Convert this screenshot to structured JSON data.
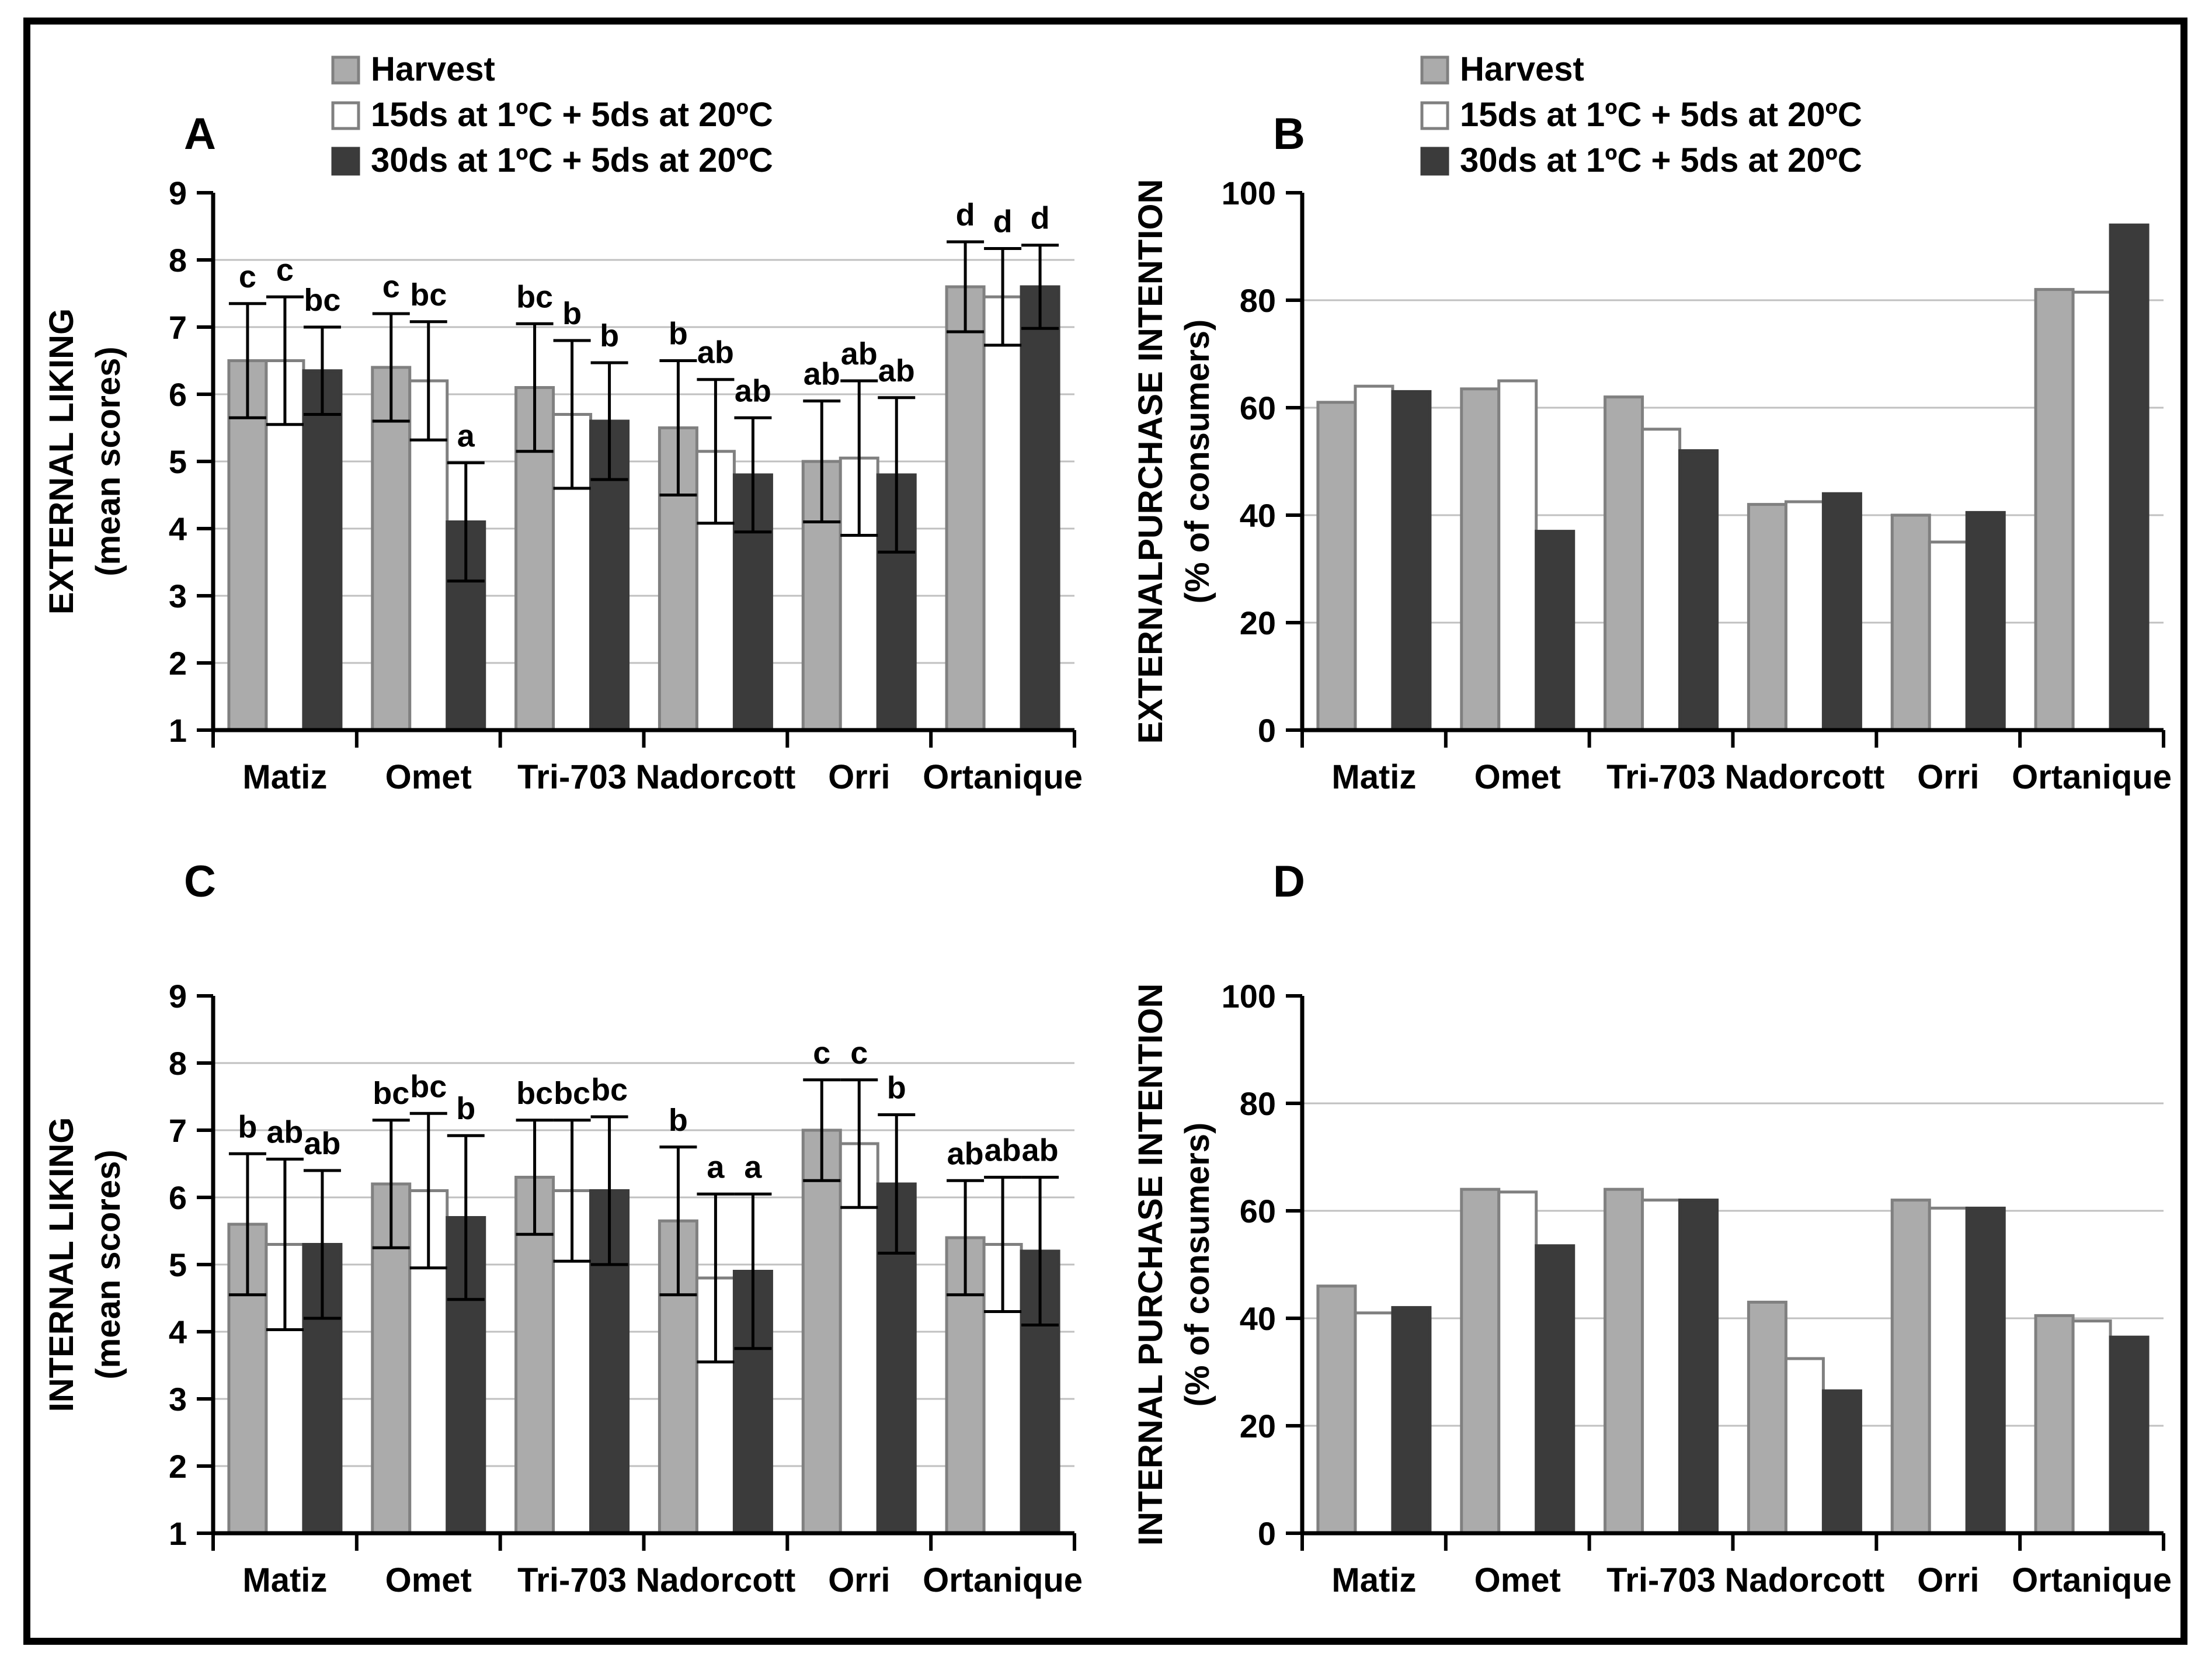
{
  "figure": {
    "background": "#FFFFFF",
    "frame_color": "#000000",
    "grid_color": "#C0C0C0",
    "axis_color": "#000000",
    "error_bar_color": "#000000",
    "text_color": "#000000"
  },
  "legend": {
    "items": [
      {
        "label": "Harvest",
        "fill": "#ABABAB",
        "border": "#808080"
      },
      {
        "label": "15ds at 1ºC + 5ds at 20ºC",
        "fill": "#FFFFFF",
        "border": "#808080"
      },
      {
        "label": "30ds at 1ºC + 5ds at 20ºC",
        "fill": "#3B3B3B",
        "border": "#3B3B3B"
      }
    ]
  },
  "chart_data": [
    {
      "type": "bar",
      "panel_letter": "A",
      "ylabel": [
        "EXTERNAL LIKING",
        "(mean scores)"
      ],
      "ylim": [
        1,
        9
      ],
      "yticks": [
        1,
        2,
        3,
        4,
        5,
        6,
        7,
        8,
        9
      ],
      "grid": true,
      "show_legend": true,
      "legend_position": "top",
      "categories": [
        "Matiz",
        "Omet",
        "Tri-703",
        "Nadorcott",
        "Orri",
        "Ortanique"
      ],
      "series": [
        {
          "name": "Harvest",
          "values": [
            6.5,
            6.4,
            6.1,
            5.5,
            5.0,
            7.6
          ],
          "errors": [
            0.85,
            0.8,
            0.95,
            1.0,
            0.9,
            0.67
          ],
          "letters": [
            "c",
            "c",
            "bc",
            "b",
            "ab",
            "d"
          ]
        },
        {
          "name": "15ds at 1ºC + 5ds at 20ºC",
          "values": [
            6.5,
            6.2,
            5.7,
            5.15,
            5.05,
            7.45
          ],
          "errors": [
            0.95,
            0.88,
            1.1,
            1.07,
            1.15,
            0.72
          ],
          "letters": [
            "c",
            "bc",
            "b",
            "ab",
            "ab",
            "d"
          ]
        },
        {
          "name": "30ds at 1ºC + 5ds at 20ºC",
          "values": [
            6.35,
            4.1,
            5.6,
            4.8,
            4.8,
            7.6
          ],
          "errors": [
            0.65,
            0.88,
            0.87,
            0.85,
            1.15,
            0.62
          ],
          "letters": [
            "bc",
            "a",
            "b",
            "ab",
            "ab",
            "d"
          ]
        }
      ]
    },
    {
      "type": "bar",
      "panel_letter": "B",
      "ylabel": [
        "EXTERNALPURCHASE INTENTION",
        "(% of consumers)"
      ],
      "ylim": [
        0,
        100
      ],
      "yticks": [
        0,
        20,
        40,
        60,
        80,
        100
      ],
      "grid": true,
      "show_legend": true,
      "legend_position": "top",
      "categories": [
        "Matiz",
        "Omet",
        "Tri-703",
        "Nadorcott",
        "Orri",
        "Ortanique"
      ],
      "series": [
        {
          "name": "Harvest",
          "values": [
            61,
            63.5,
            62,
            42,
            40,
            82
          ]
        },
        {
          "name": "15ds at 1ºC + 5ds at 20ºC",
          "values": [
            64,
            65,
            56,
            42.5,
            35,
            81.5
          ]
        },
        {
          "name": "30ds at 1ºC + 5ds at 20ºC",
          "values": [
            63,
            37,
            52,
            44,
            40.5,
            94
          ]
        }
      ]
    },
    {
      "type": "bar",
      "panel_letter": "C",
      "ylabel": [
        "INTERNAL LIKING",
        "(mean scores)"
      ],
      "ylim": [
        1,
        9
      ],
      "yticks": [
        1,
        2,
        3,
        4,
        5,
        6,
        7,
        8,
        9
      ],
      "grid": true,
      "show_legend": false,
      "categories": [
        "Matiz",
        "Omet",
        "Tri-703",
        "Nadorcott",
        "Orri",
        "Ortanique"
      ],
      "series": [
        {
          "name": "Harvest",
          "values": [
            5.6,
            6.2,
            6.3,
            5.65,
            7.0,
            5.4
          ],
          "errors": [
            1.05,
            0.95,
            0.85,
            1.1,
            0.75,
            0.85
          ],
          "letters": [
            "b",
            "bc",
            "bc",
            "b",
            "c",
            "ab"
          ]
        },
        {
          "name": "15ds at 1ºC + 5ds at 20ºC",
          "values": [
            5.3,
            6.1,
            6.1,
            4.8,
            6.8,
            5.3
          ],
          "errors": [
            1.27,
            1.15,
            1.05,
            1.25,
            0.95,
            1.0
          ],
          "letters": [
            "ab",
            "bc",
            "bc",
            "a",
            "c",
            "ab"
          ]
        },
        {
          "name": "30ds at 1ºC + 5ds at 20ºC",
          "values": [
            5.3,
            5.7,
            6.1,
            4.9,
            6.2,
            5.2
          ],
          "errors": [
            1.1,
            1.22,
            1.1,
            1.15,
            1.03,
            1.1
          ],
          "letters": [
            "ab",
            "b",
            "bc",
            "a",
            "b",
            "ab"
          ]
        }
      ]
    },
    {
      "type": "bar",
      "panel_letter": "D",
      "ylabel": [
        "INTERNAL PURCHASE INTENTION",
        "(% of consumers)"
      ],
      "ylim": [
        0,
        100
      ],
      "yticks": [
        0,
        20,
        40,
        60,
        80,
        100
      ],
      "grid": true,
      "show_legend": false,
      "categories": [
        "Matiz",
        "Omet",
        "Tri-703",
        "Nadorcott",
        "Orri",
        "Ortanique"
      ],
      "series": [
        {
          "name": "Harvest",
          "values": [
            46,
            64,
            64,
            43,
            62,
            40.5
          ]
        },
        {
          "name": "15ds at 1ºC + 5ds at 20ºC",
          "values": [
            41,
            63.5,
            62,
            32.5,
            60.5,
            39.5
          ]
        },
        {
          "name": "30ds at 1ºC + 5ds at 20ºC",
          "values": [
            42,
            53.5,
            62,
            26.5,
            60.5,
            36.5
          ]
        }
      ]
    }
  ]
}
